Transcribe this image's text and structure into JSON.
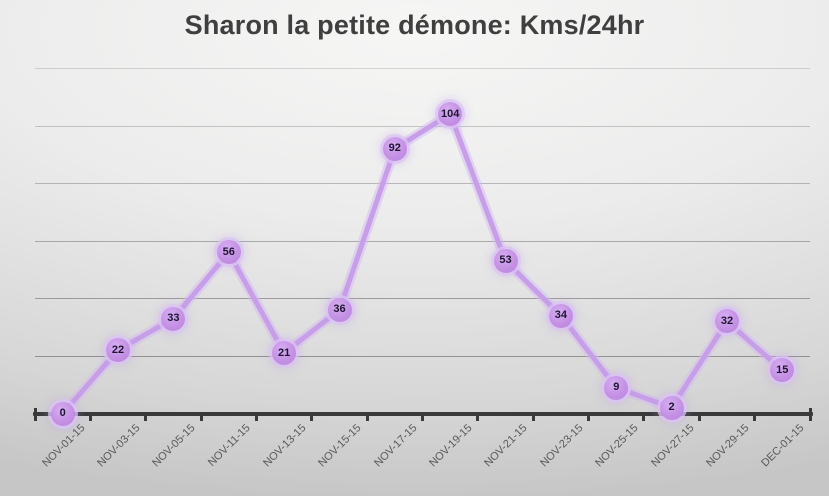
{
  "title": "Sharon la petite démone: Kms/24hr",
  "chart_data": {
    "type": "line",
    "title": "Sharon la petite démone: Kms/24hr",
    "categories": [
      "NOV-01-15",
      "NOV-03-15",
      "NOV-05-15",
      "NOV-11-15",
      "NOV-13-15",
      "NOV-15-15",
      "NOV-17-15",
      "NOV-19-15",
      "NOV-21-15",
      "NOV-23-15",
      "NOV-25-15",
      "NOV-27-15",
      "NOV-29-15",
      "DEC-01-15"
    ],
    "values": [
      0,
      22,
      33,
      56,
      21,
      36,
      92,
      104,
      53,
      34,
      9,
      2,
      32,
      15
    ],
    "xlabel": "",
    "ylabel": "",
    "ylim": [
      0,
      120
    ],
    "gridline_step": 20,
    "grid": true,
    "legend_position": "none",
    "data_labels": "on-point",
    "x_tick_rotation": -45
  },
  "colors": {
    "line": "#c79fe8",
    "line_glow": "rgba(213,184,243,0.5)",
    "marker_fill": "#c491e4",
    "marker_glow": "#dcc4f2",
    "point_label_text": "#1e1530",
    "axis": "#3a3a3a",
    "grid": "#6f6f6f",
    "axis_label_text": "#595959",
    "title_text": "#3f3f3f",
    "background_top": "#f6f6f5",
    "background_bottom": "#c6c6c6"
  }
}
